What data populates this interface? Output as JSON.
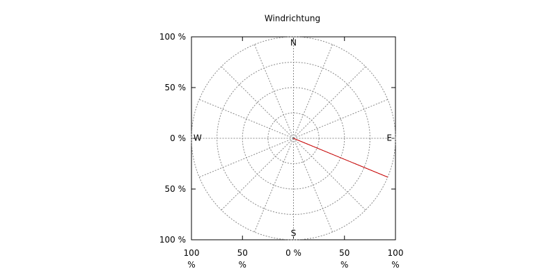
{
  "chart_data": {
    "type": "polar",
    "title": "Windrichtung",
    "xlim": [
      -100,
      100
    ],
    "ylim": [
      -100,
      100
    ],
    "xticks": [
      {
        "value": -100,
        "label": "100 %"
      },
      {
        "value": -50,
        "label": "50 %"
      },
      {
        "value": 0,
        "label": "0 %"
      },
      {
        "value": 50,
        "label": "50 %"
      },
      {
        "value": 100,
        "label": "100 %"
      }
    ],
    "yticks": [
      {
        "value": -100,
        "label": "100 %"
      },
      {
        "value": -50,
        "label": "50 %"
      },
      {
        "value": 0,
        "label": "0 %"
      },
      {
        "value": 50,
        "label": "50 %"
      },
      {
        "value": 100,
        "label": "100 %"
      }
    ],
    "rticks": [
      25,
      50,
      75,
      100
    ],
    "angle_grid_step": 22.5,
    "compass_labels": [
      "N",
      "E",
      "S",
      "W"
    ],
    "direction": [
      112.5
    ],
    "values": [
      100
    ],
    "color": "#cc0000",
    "grid": true
  }
}
